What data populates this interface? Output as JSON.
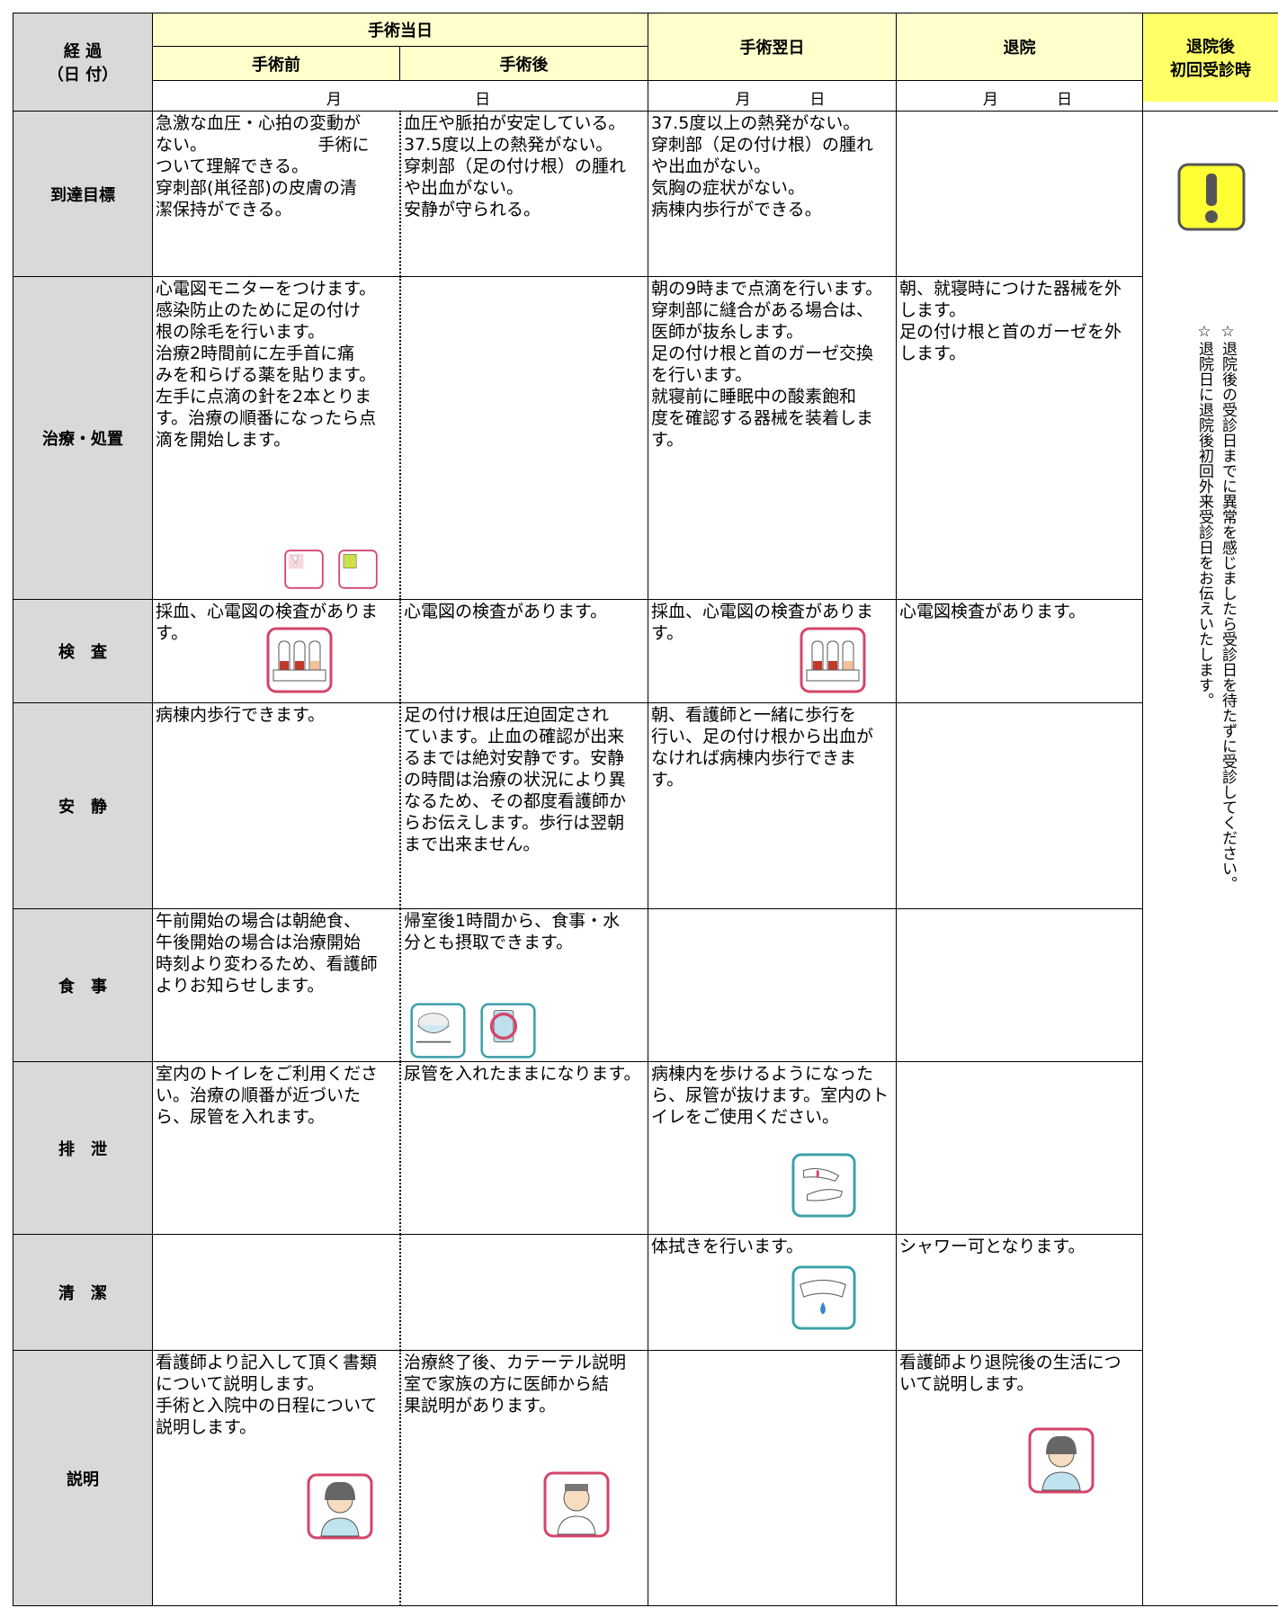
{
  "header": {
    "period_label": [
      "経 過",
      "（日 付）"
    ],
    "surgery_day": "手術当日",
    "before": "手術前",
    "after": "手術後",
    "next_day": "手術翌日",
    "discharge": "退院",
    "followup": [
      "退院後",
      "初回受診時"
    ],
    "dates": [
      {
        "month": "月",
        "day": "日"
      },
      {
        "month": "月",
        "day": "日"
      },
      {
        "month": "月",
        "day": "日"
      }
    ]
  },
  "rows": [
    {
      "label": "到達目標",
      "cells": [
        "急激な血圧・心拍の変動が\nない。　　　　　　　手術に\nついて理解できる。\n穿刺部(鼡径部)の皮膚の清\n潔保持ができる。",
        "血圧や脈拍が安定している。\n37.5度以上の熱発がない。\n穿刺部（足の付け根）の腫れ\nや出血がない。\n安静が守られる。",
        "37.5度以上の熱発がない。\n穿刺部（足の付け根）の腫れ\nや出血がない。\n気胸の症状がない。\n病棟内歩行ができる。",
        null
      ]
    },
    {
      "label": "治療・処置",
      "cells": [
        "心電図モニターをつけます。\n感染防止のために足の付け\n根の除毛を行います。\n治療2時間前に左手首に痛\nみを和らげる薬を貼ります。\n左手に点滴の針を2本とりま\nす。治療の順番になったら点\n滴を開始します。",
        null,
        "朝の9時まで点滴を行います。\n穿刺部に縫合がある場合は、\n医師が抜糸します。\n足の付け根と首のガーゼ交換\nを行います。\n就寝前に睡眠中の酸素飽和\n度を確認する器械を装着しま\nす。",
        "朝、就寝時につけた器械を外\nします。\n足の付け根と首のガーゼを外\nします。"
      ]
    },
    {
      "label": "検　査",
      "cells": [
        "採血、心電図の検査がありま\nす。",
        "心電図の検査があります。",
        "採血、心電図の検査がありま\nす。",
        "心電図検査があります。"
      ]
    },
    {
      "label": "安　静",
      "cells": [
        "病棟内歩行できます。",
        "足の付け根は圧迫固定され\nています。止血の確認が出来\nるまでは絶対安静です。安静\nの時間は治療の状況により異\nなるため、その都度看護師か\nらお伝えします。歩行は翌朝\nまで出来ません。",
        "朝、看護師と一緒に歩行を\n行い、足の付け根から出血が\nなければ病棟内歩行できま\nす。",
        null
      ]
    },
    {
      "label": "食　事",
      "cells": [
        "午前開始の場合は朝絶食、\n午後開始の場合は治療開始\n時刻より変わるため、看護師\nよりお知らせします。",
        "帰室後1時間から、食事・水\n分とも摂取できます。",
        null,
        null
      ]
    },
    {
      "label": "排　泄",
      "cells": [
        "室内のトイレをご利用くださ\nい。治療の順番が近づいた\nら、尿管を入れます。",
        "尿管を入れたままになります。",
        "病棟内を歩けるようになった\nら、尿管が抜けます。室内のト\nイレをご使用ください。",
        null
      ]
    },
    {
      "label": "清　潔",
      "cells": [
        null,
        null,
        "体拭きを行います。",
        "シャワー可となります。"
      ]
    },
    {
      "label": "説明",
      "cells": [
        "看護師より記入して頂く書類\nについて説明します。\n手術と入院中の日程について\n説明します。",
        "治療終了後、カテーテル説明\n室で家族の方に医師から結\n果説明があります。",
        null,
        "看護師より退院後の生活につ\nいて説明します。"
      ]
    }
  ],
  "followup_notes": [
    "☆退院後の受診日までに異常を感じましたら受診日を待たずに受診してください。",
    "☆退院日に退院後初回外来受診日をお伝えいたします。"
  ]
}
